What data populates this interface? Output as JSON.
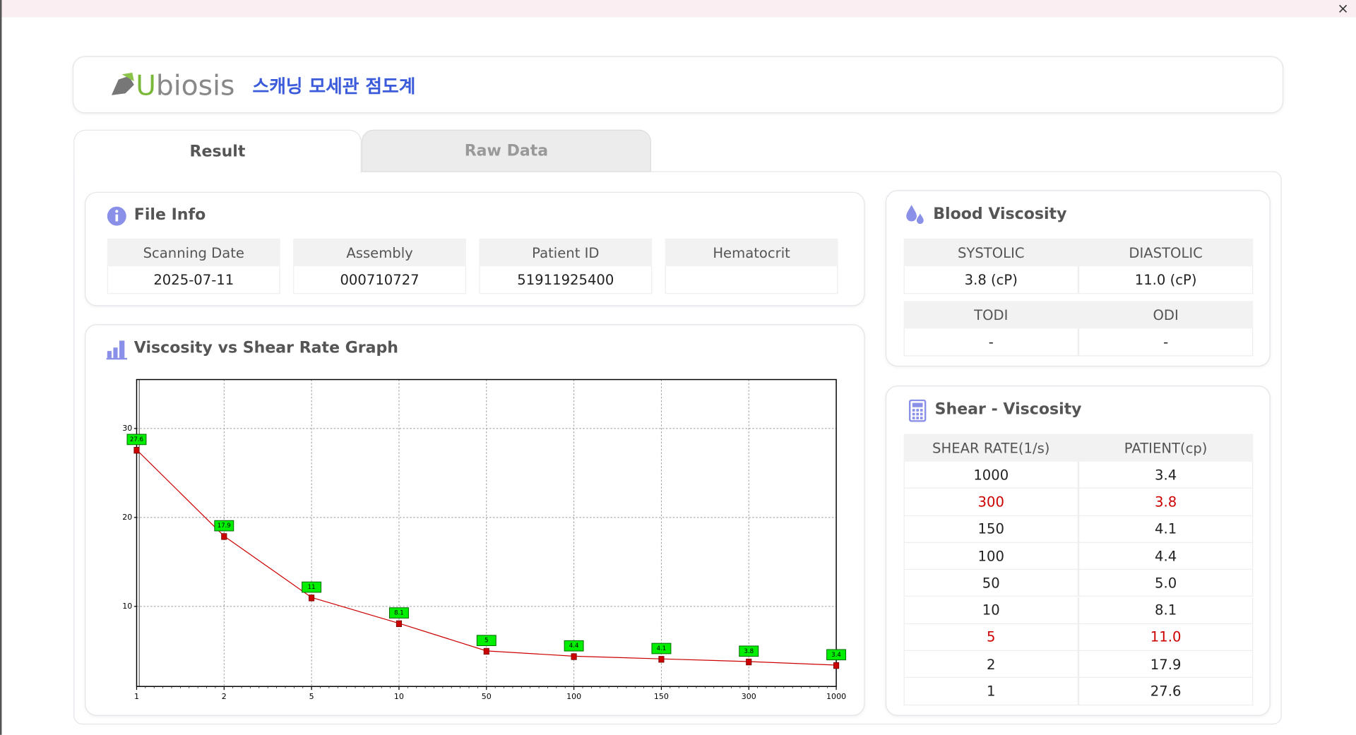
{
  "header": {
    "brand": "Ubiosis",
    "title": "스캐닝 모세관 점도계"
  },
  "tabs": [
    "Result",
    "Raw Data"
  ],
  "file_info": {
    "title": "File Info",
    "fields": [
      {
        "label": "Scanning Date",
        "value": "2025-07-11"
      },
      {
        "label": "Assembly",
        "value": "000710727"
      },
      {
        "label": "Patient ID",
        "value": "51911925400"
      },
      {
        "label": "Hematocrit"
      }
    ]
  },
  "blood_viscosity": {
    "title": "Blood Viscosity",
    "groups": [
      {
        "labels": [
          "SYSTOLIC",
          "DIASTOLIC"
        ],
        "values": [
          "3.8 (cP)",
          "11.0 (cP)"
        ]
      },
      {
        "labels": [
          "TODI",
          "ODI"
        ],
        "values": [
          "-",
          "-"
        ]
      }
    ]
  },
  "shear_viscosity": {
    "title": "Shear - Viscosity",
    "columns": [
      "SHEAR RATE(1/s)",
      "PATIENT(cp)"
    ],
    "rows": [
      {
        "cells": [
          "1000",
          "3.4"
        ]
      },
      {
        "cells": [
          "300",
          "3.8"
        ],
        "color": "#cc0000"
      },
      {
        "cells": [
          "150",
          "4.1"
        ]
      },
      {
        "cells": [
          "100",
          "4.4"
        ]
      },
      {
        "cells": [
          "50",
          "5.0"
        ]
      },
      {
        "cells": [
          "10",
          "8.1"
        ]
      },
      {
        "cells": [
          "5",
          "11.0"
        ],
        "color": "#cc0000"
      },
      {
        "cells": [
          "2",
          "17.9"
        ]
      },
      {
        "cells": [
          "1",
          "27.6"
        ]
      }
    ]
  },
  "chart_data": {
    "type": "line",
    "title": "Viscosity vs Shear Rate Graph",
    "categories": [
      "1",
      "2",
      "5",
      "10",
      "50",
      "100",
      "150",
      "300",
      "1000"
    ],
    "values": [
      27.6,
      17.9,
      11,
      8.1,
      5,
      4.4,
      4.1,
      3.8,
      3.4
    ],
    "color": "#cc0000",
    "label_color": "#00ee00",
    "ylim": [
      1,
      35.5
    ],
    "yticks": [
      10,
      20,
      30
    ],
    "grid": true
  }
}
